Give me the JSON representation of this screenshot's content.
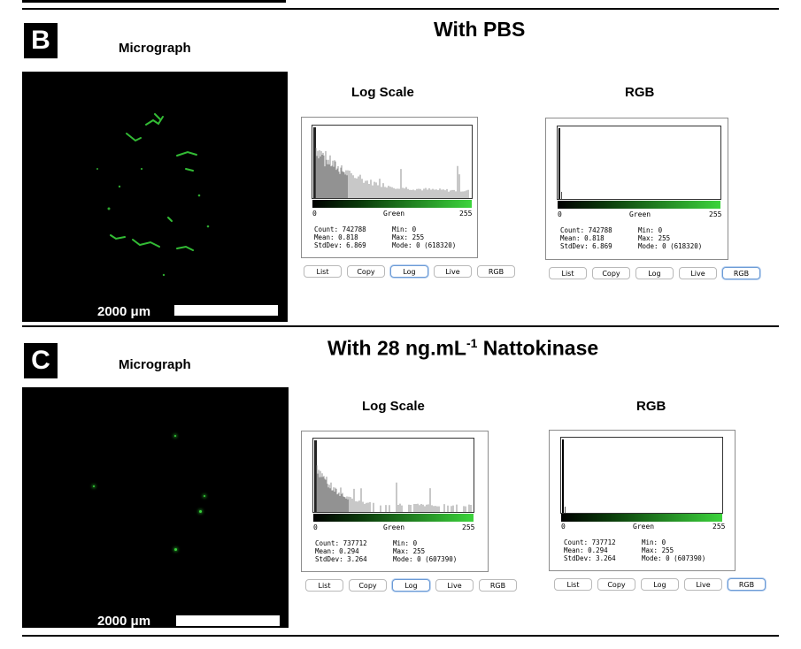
{
  "colors": {
    "background": "#ffffff",
    "micrograph_bg": "#000000",
    "fluorescence": "#39d13b"
  },
  "panel_b": {
    "letter": "B",
    "title": "With PBS",
    "micrograph_label": "Micrograph",
    "scale_text": "2000 μm",
    "log_panel": {
      "label": "Log Scale",
      "axis_min": "0",
      "axis_name": "Green",
      "axis_max": "255",
      "stats_left": [
        "Count: 742788",
        "Mean: 0.818",
        "StdDev: 6.869"
      ],
      "stats_right": [
        "Min: 0",
        "Max: 255",
        "Mode: 0 (618320)"
      ],
      "buttons": [
        "List",
        "Copy",
        "Log",
        "Live",
        "RGB"
      ],
      "active_button": "Log"
    },
    "rgb_panel": {
      "label": "RGB",
      "axis_min": "0",
      "axis_name": "Green",
      "axis_max": "255",
      "stats_left": [
        "Count: 742788",
        "Mean: 0.818",
        "StdDev: 6.869"
      ],
      "stats_right": [
        "Min: 0",
        "Max: 255",
        "Mode: 0 (618320)"
      ],
      "buttons": [
        "List",
        "Copy",
        "Log",
        "Live",
        "RGB"
      ],
      "active_button": "RGB"
    }
  },
  "panel_c": {
    "letter": "C",
    "title_main": "With 28 ng.mL",
    "title_sup": "-1",
    "title_tail": " Nattokinase",
    "micrograph_label": "Micrograph",
    "scale_text": "2000 μm",
    "log_panel": {
      "label": "Log Scale",
      "axis_min": "0",
      "axis_name": "Green",
      "axis_max": "255",
      "stats_left": [
        "Count: 737712",
        "Mean: 0.294",
        "StdDev: 3.264"
      ],
      "stats_right": [
        "Min: 0",
        "Max: 255",
        "Mode: 0 (607390)"
      ],
      "buttons": [
        "List",
        "Copy",
        "Log",
        "Live",
        "RGB"
      ],
      "active_button": "Log"
    },
    "rgb_panel": {
      "label": "RGB",
      "axis_min": "0",
      "axis_name": "Green",
      "axis_max": "255",
      "stats_left": [
        "Count: 737712",
        "Mean: 0.294",
        "StdDev: 3.264"
      ],
      "stats_right": [
        "Min: 0",
        "Max: 255",
        "Mode: 0 (607390)"
      ],
      "buttons": [
        "List",
        "Copy",
        "Log",
        "Live",
        "RGB"
      ],
      "active_button": "RGB"
    }
  }
}
